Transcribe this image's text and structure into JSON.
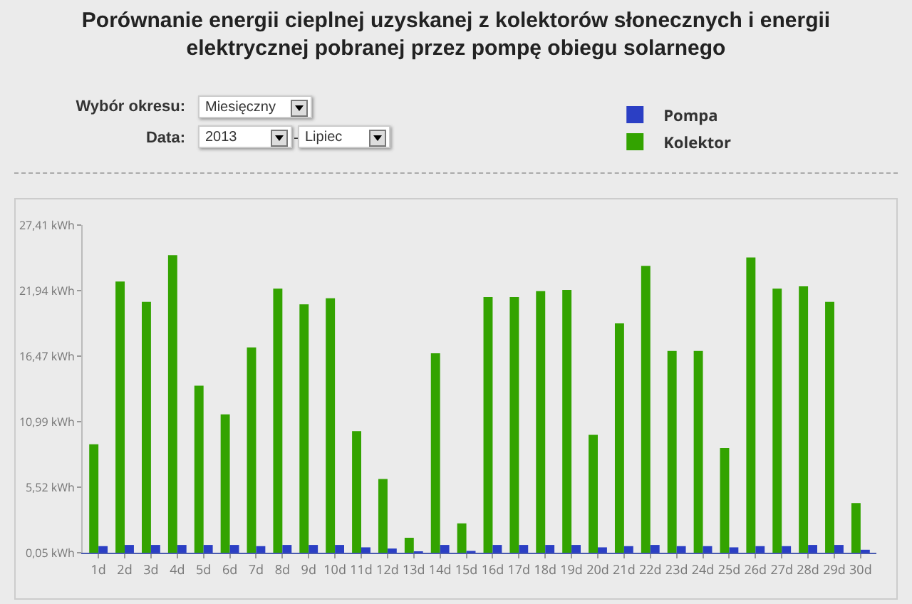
{
  "chart_data": {
    "type": "bar",
    "title": "Porównanie energii cieplnej uzyskanej z kolektorów słonecznych i energii elektrycznej pobranej przez pompę obiegu solarnego",
    "categories": [
      "1d",
      "2d",
      "3d",
      "4d",
      "5d",
      "6d",
      "7d",
      "8d",
      "9d",
      "10d",
      "11d",
      "12d",
      "13d",
      "14d",
      "15d",
      "16d",
      "17d",
      "18d",
      "19d",
      "20d",
      "21d",
      "22d",
      "23d",
      "24d",
      "25d",
      "26d",
      "27d",
      "28d",
      "29d",
      "30d"
    ],
    "series": [
      {
        "name": "Kolektor",
        "color": "#33a300",
        "values": [
          9.1,
          22.7,
          21.0,
          24.9,
          14.0,
          11.6,
          17.2,
          22.1,
          20.8,
          21.3,
          10.2,
          6.2,
          1.3,
          16.7,
          2.5,
          21.4,
          21.4,
          21.9,
          22.0,
          9.9,
          19.2,
          24.0,
          16.9,
          16.9,
          8.8,
          24.7,
          22.1,
          22.3,
          21.0,
          4.2
        ]
      },
      {
        "name": "Pompa",
        "color": "#2b3fc4",
        "values": [
          0.6,
          0.7,
          0.7,
          0.7,
          0.7,
          0.7,
          0.6,
          0.7,
          0.7,
          0.7,
          0.5,
          0.4,
          0.1,
          0.7,
          0.2,
          0.7,
          0.7,
          0.7,
          0.7,
          0.5,
          0.6,
          0.7,
          0.6,
          0.6,
          0.5,
          0.6,
          0.6,
          0.7,
          0.7,
          0.3
        ]
      }
    ],
    "ylim": [
      0.05,
      27.41
    ],
    "yticks": [
      {
        "value": 0.05,
        "label": "0,05 kWh"
      },
      {
        "value": 5.52,
        "label": "5,52 kWh"
      },
      {
        "value": 10.99,
        "label": "10,99 kWh"
      },
      {
        "value": 16.47,
        "label": "16,47 kWh"
      },
      {
        "value": 21.94,
        "label": "21,94 kWh"
      },
      {
        "value": 27.41,
        "label": "27,41 kWh"
      }
    ],
    "legend": "top right",
    "annotations": [
      "Wybór okresu:",
      "Miesięczny",
      "Data:",
      "2013",
      "-",
      "Lipiec"
    ]
  }
}
